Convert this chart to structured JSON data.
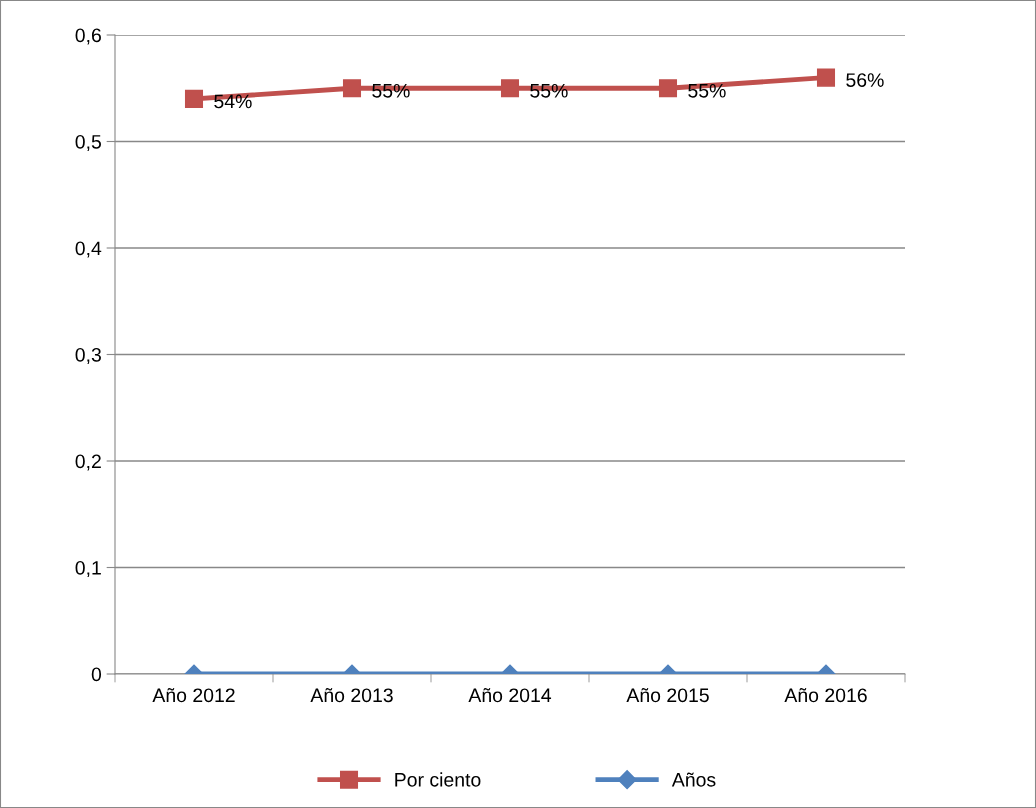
{
  "chart_data": {
    "type": "line",
    "categories": [
      "Año 2012",
      "Año 2013",
      "Año 2014",
      "Año 2015",
      "Año 2016"
    ],
    "series": [
      {
        "name": "Por ciento",
        "color": "#c0504d",
        "marker": "square",
        "values": [
          0.54,
          0.55,
          0.55,
          0.55,
          0.56
        ],
        "value_labels": [
          "54%",
          "55%",
          "55%",
          "55%",
          "56%"
        ]
      },
      {
        "name": "Años",
        "color": "#4f81bd",
        "marker": "diamond",
        "values": [
          0,
          0,
          0,
          0,
          0
        ]
      }
    ],
    "ylim": [
      0,
      0.6
    ],
    "yticks": [
      0,
      {
        "value": 0.1,
        "label": "0,1"
      },
      {
        "value": 0.2,
        "label": "0,2"
      },
      {
        "value": 0.3,
        "label": "0,3"
      },
      {
        "value": 0.4,
        "label": "0,4"
      },
      {
        "value": 0.5,
        "label": "0,5"
      },
      {
        "value": 0.6,
        "label": "0,6"
      }
    ],
    "grid": "y",
    "legend": "bottom",
    "line_style": "solid"
  }
}
